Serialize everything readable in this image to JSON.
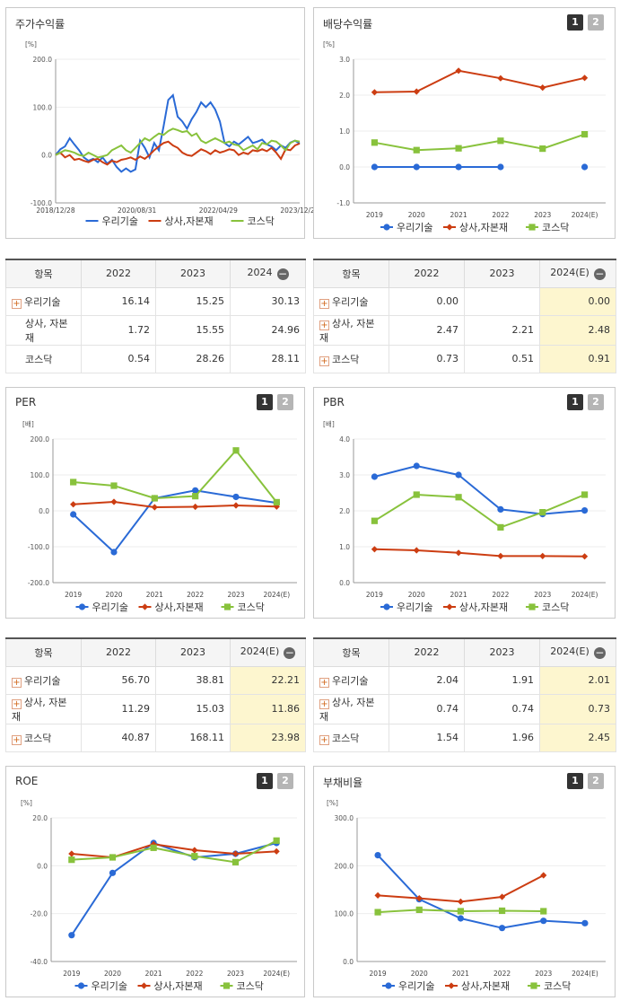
{
  "panels": {
    "stock": {
      "title": "주가수익률"
    },
    "dividend": {
      "title": "배당수익률",
      "btn1": "1",
      "btn2": "2"
    },
    "per": {
      "title": "PER",
      "btn1": "1",
      "btn2": "2"
    },
    "pbr": {
      "title": "PBR",
      "btn1": "1",
      "btn2": "2"
    },
    "roe": {
      "title": "ROE",
      "btn1": "1",
      "btn2": "2"
    },
    "debt": {
      "title": "부채비율",
      "btn1": "1",
      "btn2": "2"
    }
  },
  "colors": {
    "s1": "#2a6ad6",
    "s2": "#cc3d12",
    "s3": "#88c23c"
  },
  "chart_data": [
    {
      "id": "stock",
      "type": "line",
      "unit_label": "[%]",
      "x_ticks": [
        "2018/12/28",
        "2020/08/31",
        "2022/04/29",
        "2023/12/28"
      ],
      "ylim": [
        -100,
        200
      ],
      "y_ticks": [
        "200.0",
        "100.0",
        "0.0",
        "-100.0"
      ],
      "series": [
        {
          "name": "우리기술",
          "values": [
            0,
            12,
            18,
            35,
            22,
            10,
            -5,
            -12,
            -8,
            -15,
            -5,
            -18,
            -10,
            -25,
            -35,
            -28,
            -35,
            -30,
            30,
            15,
            -5,
            25,
            10,
            60,
            115,
            125,
            80,
            70,
            55,
            75,
            90,
            110,
            100,
            110,
            95,
            70,
            25,
            18,
            28,
            22,
            30,
            38,
            25,
            28,
            32,
            22,
            18,
            10,
            20,
            15,
            26,
            30,
            24
          ]
        },
        {
          "name": "상사,자본재",
          "values": [
            0,
            5,
            -5,
            0,
            -10,
            -8,
            -12,
            -15,
            -10,
            -8,
            -15,
            -20,
            -12,
            -15,
            -10,
            -8,
            -5,
            -10,
            -3,
            -8,
            0,
            10,
            18,
            25,
            28,
            20,
            15,
            5,
            0,
            -2,
            5,
            12,
            8,
            2,
            10,
            5,
            8,
            12,
            10,
            0,
            5,
            2,
            10,
            8,
            12,
            8,
            15,
            5,
            -8,
            12,
            10,
            20,
            24
          ]
        },
        {
          "name": "코스닥",
          "values": [
            0,
            5,
            10,
            8,
            5,
            0,
            -2,
            5,
            0,
            -5,
            -3,
            0,
            10,
            15,
            20,
            10,
            5,
            15,
            25,
            35,
            30,
            38,
            45,
            42,
            50,
            55,
            52,
            48,
            50,
            40,
            45,
            30,
            25,
            30,
            35,
            30,
            25,
            28,
            22,
            20,
            10,
            15,
            20,
            12,
            25,
            22,
            30,
            28,
            20,
            10,
            25,
            30,
            28
          ]
        }
      ]
    },
    {
      "id": "dividend",
      "type": "line",
      "unit_label": "[%]",
      "categories": [
        "2019",
        "2020",
        "2021",
        "2022",
        "2023",
        "2024(E)"
      ],
      "ylim": [
        -1,
        3
      ],
      "y_ticks": [
        "3.0",
        "2.0",
        "1.0",
        "0.0",
        "-1.0"
      ],
      "series": [
        {
          "name": "우리기술",
          "values": [
            0,
            0,
            0,
            0,
            null,
            0
          ]
        },
        {
          "name": "상사,자본재",
          "values": [
            2.08,
            2.1,
            2.68,
            2.47,
            2.21,
            2.48
          ]
        },
        {
          "name": "코스닥",
          "values": [
            0.68,
            0.47,
            0.52,
            0.73,
            0.51,
            0.91
          ]
        }
      ]
    },
    {
      "id": "per",
      "type": "line",
      "unit_label": "[배]",
      "categories": [
        "2019",
        "2020",
        "2021",
        "2022",
        "2023",
        "2024(E)"
      ],
      "ylim": [
        -200,
        200
      ],
      "y_ticks": [
        "200.0",
        "100.0",
        "0.0",
        "-100.0",
        "-200.0"
      ],
      "series": [
        {
          "name": "우리기술",
          "values": [
            -10,
            -115,
            35,
            56.7,
            38.81,
            22.21
          ]
        },
        {
          "name": "상사,자본재",
          "values": [
            18,
            25,
            10,
            11.29,
            15.03,
            11.86
          ]
        },
        {
          "name": "코스닥",
          "values": [
            80,
            70,
            35,
            40.87,
            168.11,
            23.98
          ]
        }
      ]
    },
    {
      "id": "pbr",
      "type": "line",
      "unit_label": "[배]",
      "categories": [
        "2019",
        "2020",
        "2021",
        "2022",
        "2023",
        "2024(E)"
      ],
      "ylim": [
        0,
        4
      ],
      "y_ticks": [
        "4.0",
        "3.0",
        "2.0",
        "1.0",
        "0.0"
      ],
      "series": [
        {
          "name": "우리기술",
          "values": [
            2.95,
            3.25,
            3.0,
            2.04,
            1.91,
            2.01
          ]
        },
        {
          "name": "상사,자본재",
          "values": [
            0.93,
            0.9,
            0.83,
            0.74,
            0.74,
            0.73
          ]
        },
        {
          "name": "코스닥",
          "values": [
            1.72,
            2.45,
            2.38,
            1.54,
            1.96,
            2.45
          ]
        }
      ]
    },
    {
      "id": "roe",
      "type": "line",
      "unit_label": "[%]",
      "categories": [
        "2019",
        "2020",
        "2021",
        "2022",
        "2023",
        "2024(E)"
      ],
      "ylim": [
        -40,
        20
      ],
      "y_ticks": [
        "20.0",
        "0.0",
        "-20.0",
        "-40.0"
      ],
      "series": [
        {
          "name": "우리기술",
          "values": [
            -29,
            -3,
            9.5,
            3.5,
            5,
            9.5
          ]
        },
        {
          "name": "상사,자본재",
          "values": [
            5,
            3.5,
            9,
            6.5,
            5,
            6
          ]
        },
        {
          "name": "코스닥",
          "values": [
            2.5,
            3.5,
            7.5,
            4,
            1.5,
            10.5
          ]
        }
      ]
    },
    {
      "id": "debt",
      "type": "line",
      "unit_label": "[%]",
      "categories": [
        "2019",
        "2020",
        "2021",
        "2022",
        "2023",
        "2024(E)"
      ],
      "ylim": [
        0,
        300
      ],
      "y_ticks": [
        "300.0",
        "200.0",
        "100.0",
        "0.0"
      ],
      "series": [
        {
          "name": "우리기술",
          "values": [
            222,
            130,
            90,
            70,
            85,
            80
          ]
        },
        {
          "name": "상사,자본재",
          "values": [
            138,
            132,
            125,
            135,
            180,
            null
          ]
        },
        {
          "name": "코스닥",
          "values": [
            103,
            108,
            105,
            106,
            105,
            null
          ]
        }
      ]
    }
  ],
  "tables": {
    "stock": {
      "headers": [
        "항목",
        "2022",
        "2023",
        "2024"
      ],
      "rows": [
        {
          "name": "우리기술",
          "plus": true,
          "v": [
            "16.14",
            "15.25",
            "30.13"
          ]
        },
        {
          "name": "상사, 자본재",
          "plus": false,
          "v": [
            "1.72",
            "15.55",
            "24.96"
          ]
        },
        {
          "name": "코스닥",
          "plus": false,
          "v": [
            "0.54",
            "28.26",
            "28.11"
          ]
        }
      ]
    },
    "dividend": {
      "headers": [
        "항목",
        "2022",
        "2023",
        "2024(E)"
      ],
      "rows": [
        {
          "name": "우리기술",
          "plus": true,
          "v": [
            "0.00",
            "",
            "0.00"
          ]
        },
        {
          "name": "상사, 자본재",
          "plus": true,
          "v": [
            "2.47",
            "2.21",
            "2.48"
          ]
        },
        {
          "name": "코스닥",
          "plus": true,
          "v": [
            "0.73",
            "0.51",
            "0.91"
          ]
        }
      ]
    },
    "per": {
      "headers": [
        "항목",
        "2022",
        "2023",
        "2024(E)"
      ],
      "rows": [
        {
          "name": "우리기술",
          "plus": true,
          "v": [
            "56.70",
            "38.81",
            "22.21"
          ]
        },
        {
          "name": "상사, 자본재",
          "plus": true,
          "v": [
            "11.29",
            "15.03",
            "11.86"
          ]
        },
        {
          "name": "코스닥",
          "plus": true,
          "v": [
            "40.87",
            "168.11",
            "23.98"
          ]
        }
      ]
    },
    "pbr": {
      "headers": [
        "항목",
        "2022",
        "2023",
        "2024(E)"
      ],
      "rows": [
        {
          "name": "우리기술",
          "plus": true,
          "v": [
            "2.04",
            "1.91",
            "2.01"
          ]
        },
        {
          "name": "상사, 자본재",
          "plus": true,
          "v": [
            "0.74",
            "0.74",
            "0.73"
          ]
        },
        {
          "name": "코스닥",
          "plus": true,
          "v": [
            "1.54",
            "1.96",
            "2.45"
          ]
        }
      ]
    }
  }
}
